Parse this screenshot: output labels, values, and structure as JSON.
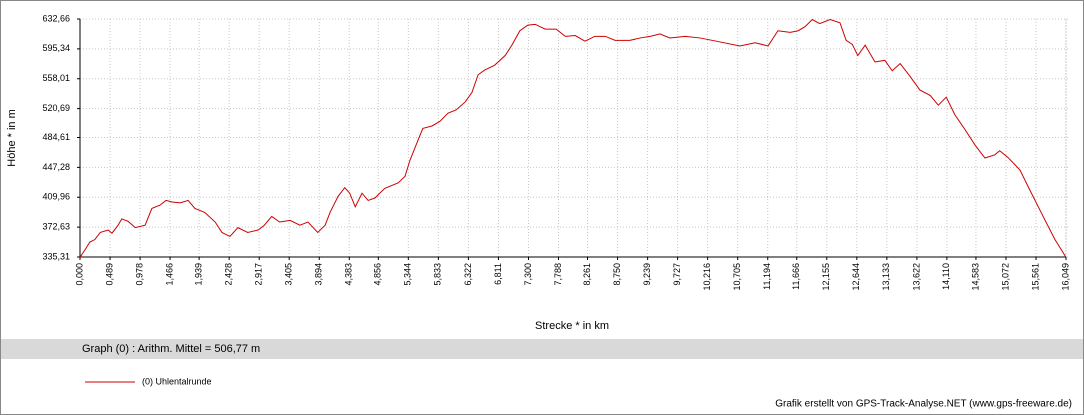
{
  "chart_data": {
    "type": "line",
    "xlabel": "Strecke *  in  km",
    "ylabel": "Höhe *  in  m",
    "annotation": "Graph (0) :  Arithm. Mittel = 506,77 m",
    "credit": "Grafik erstellt von GPS-Track-Analyse.NET (www.gps-freeware.de)",
    "grid": true,
    "xlim": [
      0,
      16.049
    ],
    "ylim": [
      335.31,
      632.66
    ],
    "xticks": [
      {
        "value": 0,
        "label": "0,000"
      },
      {
        "value": 0.489,
        "label": "0,489"
      },
      {
        "value": 0.978,
        "label": "0,978"
      },
      {
        "value": 1.466,
        "label": "1,466"
      },
      {
        "value": 1.939,
        "label": "1,939"
      },
      {
        "value": 2.428,
        "label": "2,428"
      },
      {
        "value": 2.917,
        "label": "2,917"
      },
      {
        "value": 3.405,
        "label": "3,405"
      },
      {
        "value": 3.894,
        "label": "3,894"
      },
      {
        "value": 4.383,
        "label": "4,383"
      },
      {
        "value": 4.856,
        "label": "4,856"
      },
      {
        "value": 5.344,
        "label": "5,344"
      },
      {
        "value": 5.833,
        "label": "5,833"
      },
      {
        "value": 6.322,
        "label": "6,322"
      },
      {
        "value": 6.811,
        "label": "6,811"
      },
      {
        "value": 7.3,
        "label": "7,300"
      },
      {
        "value": 7.788,
        "label": "7,788"
      },
      {
        "value": 8.261,
        "label": "8,261"
      },
      {
        "value": 8.75,
        "label": "8,750"
      },
      {
        "value": 9.239,
        "label": "9,239"
      },
      {
        "value": 9.727,
        "label": "9,727"
      },
      {
        "value": 10.216,
        "label": "10,216"
      },
      {
        "value": 10.705,
        "label": "10,705"
      },
      {
        "value": 11.194,
        "label": "11,194"
      },
      {
        "value": 11.666,
        "label": "11,666"
      },
      {
        "value": 12.155,
        "label": "12,155"
      },
      {
        "value": 12.644,
        "label": "12,644"
      },
      {
        "value": 13.133,
        "label": "13,133"
      },
      {
        "value": 13.622,
        "label": "13,622"
      },
      {
        "value": 14.11,
        "label": "14,110"
      },
      {
        "value": 14.583,
        "label": "14,583"
      },
      {
        "value": 15.072,
        "label": "15,072"
      },
      {
        "value": 15.561,
        "label": "15,561"
      },
      {
        "value": 16.049,
        "label": "16,049"
      }
    ],
    "yticks": [
      {
        "value": 335.31,
        "label": "335,31"
      },
      {
        "value": 372.63,
        "label": "372,63"
      },
      {
        "value": 409.96,
        "label": "409,96"
      },
      {
        "value": 447.28,
        "label": "447,28"
      },
      {
        "value": 484.61,
        "label": "484,61"
      },
      {
        "value": 520.69,
        "label": "520,69"
      },
      {
        "value": 558.01,
        "label": "558,01"
      },
      {
        "value": 595.34,
        "label": "595,34"
      },
      {
        "value": 632.66,
        "label": "632,66"
      }
    ],
    "x": [
      0,
      0.08,
      0.16,
      0.24,
      0.33,
      0.46,
      0.52,
      0.62,
      0.68,
      0.78,
      0.9,
      1.06,
      1.17,
      1.3,
      1.4,
      1.5,
      1.63,
      1.76,
      1.87,
      2.03,
      2.2,
      2.31,
      2.44,
      2.57,
      2.73,
      2.9,
      3.0,
      3.12,
      3.25,
      3.42,
      3.58,
      3.71,
      3.87,
      3.99,
      4.07,
      4.2,
      4.31,
      4.39,
      4.48,
      4.59,
      4.69,
      4.8,
      4.96,
      5.18,
      5.29,
      5.37,
      5.5,
      5.58,
      5.73,
      5.86,
      5.99,
      6.12,
      6.27,
      6.38,
      6.48,
      6.59,
      6.75,
      6.92,
      7.03,
      7.16,
      7.29,
      7.41,
      7.57,
      7.75,
      7.9,
      8.06,
      8.22,
      8.38,
      8.55,
      8.71,
      8.95,
      9.12,
      9.28,
      9.44,
      9.6,
      9.85,
      10.09,
      10.42,
      10.74,
      10.99,
      11.2,
      11.36,
      11.56,
      11.69,
      11.8,
      11.92,
      12.04,
      12.21,
      12.37,
      12.47,
      12.57,
      12.66,
      12.78,
      12.94,
      13.1,
      13.22,
      13.35,
      13.51,
      13.67,
      13.84,
      13.97,
      14.1,
      14.24,
      14.41,
      14.57,
      14.73,
      14.89,
      14.97,
      15.1,
      15.3,
      15.46,
      15.71,
      15.87,
      16.049
    ],
    "series": [
      {
        "name": "(0) Uhlentalrunde",
        "color": "#cc0000",
        "values": [
          335,
          344,
          354,
          357,
          366,
          369,
          365,
          375,
          383,
          380,
          372,
          375,
          396,
          400,
          406,
          404,
          403,
          406,
          396,
          391,
          379,
          366,
          361,
          372,
          366,
          369,
          375,
          386,
          379,
          381,
          375,
          379,
          366,
          375,
          391,
          411,
          422,
          415,
          398,
          415,
          406,
          409,
          421,
          428,
          436,
          456,
          481,
          496,
          499,
          505,
          515,
          519,
          529,
          541,
          563,
          569,
          575,
          587,
          600,
          618,
          625,
          626,
          620,
          620,
          611,
          612,
          605,
          611,
          611,
          606,
          606,
          609,
          611,
          614,
          609,
          611,
          609,
          604,
          599,
          603,
          599,
          618,
          616,
          618,
          623,
          632,
          627,
          632,
          628,
          606,
          601,
          587,
          600,
          579,
          581,
          568,
          577,
          561,
          544,
          537,
          525,
          535,
          513,
          494,
          475,
          459,
          463,
          468,
          460,
          444,
          419,
          381,
          357,
          335
        ]
      }
    ]
  }
}
